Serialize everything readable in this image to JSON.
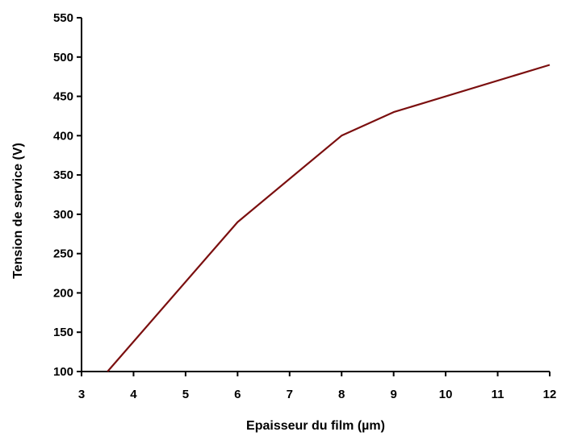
{
  "chart_data": {
    "type": "line",
    "title": "",
    "xlabel": "Epaisseur du film (µm)",
    "ylabel": "Tension de service (V)",
    "xlim": [
      3,
      12
    ],
    "ylim": [
      100,
      550
    ],
    "x_ticks": [
      3,
      4,
      5,
      6,
      7,
      8,
      9,
      10,
      11,
      12
    ],
    "y_ticks": [
      100,
      150,
      200,
      250,
      300,
      350,
      400,
      450,
      500,
      550
    ],
    "grid": false,
    "legend": "none",
    "series": [
      {
        "color": "#7b0f0f",
        "points": [
          [
            3.5,
            100
          ],
          [
            6,
            290
          ],
          [
            8,
            400
          ],
          [
            9,
            430
          ],
          [
            12,
            490
          ]
        ]
      }
    ]
  }
}
